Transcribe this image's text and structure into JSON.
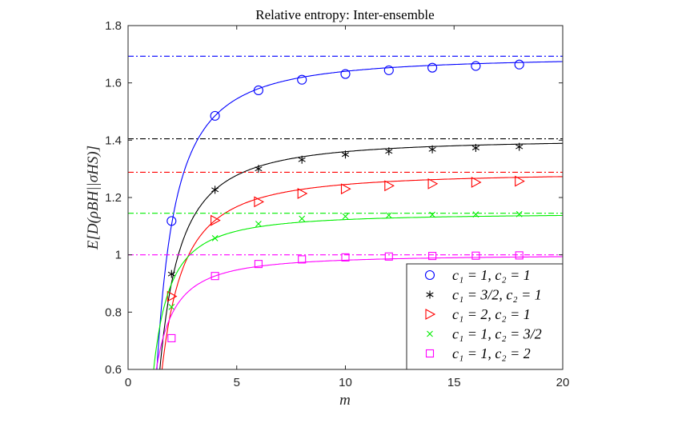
{
  "chart_data": {
    "type": "line",
    "title": "Relative entropy: Inter-ensemble",
    "xlabel": "m",
    "ylabel": "E[D(ρBH||σHS)]",
    "xlim": [
      0,
      20
    ],
    "ylim": [
      0.6,
      1.8
    ],
    "xticks": [
      "0",
      "5",
      "10",
      "15",
      "20"
    ],
    "yticks": [
      "0.6",
      "0.8",
      "1",
      "1.2",
      "1.4",
      "1.6",
      "1.8"
    ],
    "grid": false,
    "legend_position": "bottom-right",
    "x": [
      2,
      4,
      6,
      8,
      10,
      12,
      14,
      16,
      18
    ],
    "series": [
      {
        "name": "c₁ = 1, c₂ = 1",
        "color": "#0000ff",
        "marker": "circle",
        "asymptote": 1.693,
        "values": [
          1.118,
          1.485,
          1.574,
          1.611,
          1.631,
          1.644,
          1.653,
          1.659,
          1.664
        ]
      },
      {
        "name": "c₁ = 3/2, c₂ = 1",
        "color": "#000000",
        "marker": "asterisk",
        "asymptote": 1.405,
        "values": [
          0.933,
          1.227,
          1.3,
          1.332,
          1.35,
          1.361,
          1.368,
          1.373,
          1.377
        ]
      },
      {
        "name": "c₁ = 2, c₂ = 1",
        "color": "#ff0000",
        "marker": "triangle-right",
        "asymptote": 1.288,
        "values": [
          0.855,
          1.12,
          1.185,
          1.214,
          1.23,
          1.241,
          1.248,
          1.253,
          1.257
        ]
      },
      {
        "name": "c₁ = 1, c₂ = 3/2",
        "color": "#00ee00",
        "marker": "x",
        "asymptote": 1.145,
        "values": [
          0.818,
          1.058,
          1.108,
          1.126,
          1.134,
          1.138,
          1.14,
          1.141,
          1.142
        ]
      },
      {
        "name": "c₁ = 1, c₂ = 2",
        "color": "#ff00ff",
        "marker": "square",
        "asymptote": 1.0,
        "values": [
          0.709,
          0.926,
          0.968,
          0.984,
          0.991,
          0.994,
          0.996,
          0.997,
          0.998
        ]
      }
    ]
  }
}
